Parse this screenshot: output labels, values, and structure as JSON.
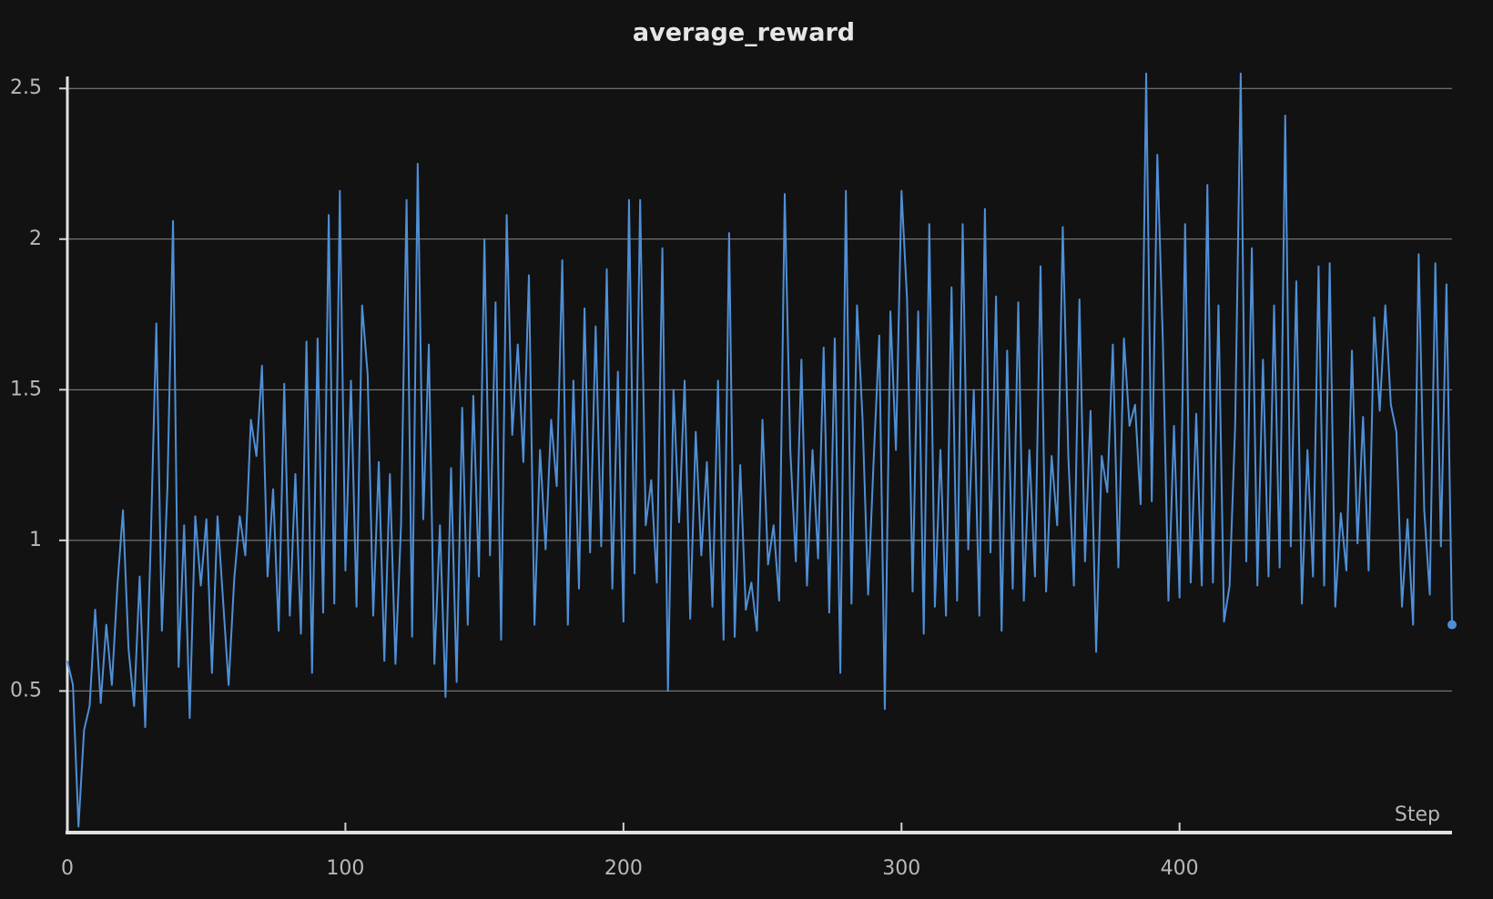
{
  "chart_data": {
    "type": "line",
    "title": "average_reward",
    "x_label": "Step",
    "color": "#4f8fd6",
    "grid": true,
    "xlim": [
      0,
      498
    ],
    "xticks": [
      0,
      100,
      200,
      300,
      400
    ],
    "ylim": [
      0.03,
      2.54
    ],
    "yticks": [
      0.5,
      1,
      1.5,
      2,
      2.5
    ],
    "x": [
      0,
      2,
      4,
      6,
      8,
      10,
      12,
      14,
      16,
      18,
      20,
      22,
      24,
      26,
      28,
      30,
      32,
      34,
      36,
      38,
      40,
      42,
      44,
      46,
      48,
      50,
      52,
      54,
      56,
      58,
      60,
      62,
      64,
      66,
      68,
      70,
      72,
      74,
      76,
      78,
      80,
      82,
      84,
      86,
      88,
      90,
      92,
      94,
      96,
      98,
      100,
      102,
      104,
      106,
      108,
      110,
      112,
      114,
      116,
      118,
      120,
      122,
      124,
      126,
      128,
      130,
      132,
      134,
      136,
      138,
      140,
      142,
      144,
      146,
      148,
      150,
      152,
      154,
      156,
      158,
      160,
      162,
      164,
      166,
      168,
      170,
      172,
      174,
      176,
      178,
      180,
      182,
      184,
      186,
      188,
      190,
      192,
      194,
      196,
      198,
      200,
      202,
      204,
      206,
      208,
      210,
      212,
      214,
      216,
      218,
      220,
      222,
      224,
      226,
      228,
      230,
      232,
      234,
      236,
      238,
      240,
      242,
      244,
      246,
      248,
      250,
      252,
      254,
      256,
      258,
      260,
      262,
      264,
      266,
      268,
      270,
      272,
      274,
      276,
      278,
      280,
      282,
      284,
      286,
      288,
      290,
      292,
      294,
      296,
      298,
      300,
      302,
      304,
      306,
      308,
      310,
      312,
      314,
      316,
      318,
      320,
      322,
      324,
      326,
      328,
      330,
      332,
      334,
      336,
      338,
      340,
      342,
      344,
      346,
      348,
      350,
      352,
      354,
      356,
      358,
      360,
      362,
      364,
      366,
      368,
      370,
      372,
      374,
      376,
      378,
      380,
      382,
      384,
      386,
      388,
      390,
      392,
      394,
      396,
      398,
      400,
      402,
      404,
      406,
      408,
      410,
      412,
      414,
      416,
      418,
      420,
      422,
      424,
      426,
      428,
      430,
      432,
      434,
      436,
      438,
      440,
      442,
      444,
      446,
      448,
      450,
      452,
      454,
      456,
      458,
      460,
      462,
      464,
      466,
      468,
      470,
      472,
      474,
      476,
      478,
      480,
      482,
      484,
      486,
      488,
      490,
      492,
      494,
      496,
      498
    ],
    "values": [
      0.6,
      0.52,
      0.05,
      0.37,
      0.45,
      0.77,
      0.46,
      0.72,
      0.52,
      0.85,
      1.1,
      0.64,
      0.45,
      0.88,
      0.38,
      1.0,
      1.72,
      0.7,
      1.18,
      2.06,
      0.58,
      1.05,
      0.41,
      1.08,
      0.85,
      1.07,
      0.56,
      1.08,
      0.8,
      0.52,
      0.87,
      1.08,
      0.95,
      1.4,
      1.28,
      1.58,
      0.88,
      1.17,
      0.7,
      1.52,
      0.75,
      1.22,
      0.69,
      1.66,
      0.56,
      1.67,
      0.76,
      2.08,
      0.79,
      2.16,
      0.9,
      1.53,
      0.78,
      1.78,
      1.55,
      0.75,
      1.26,
      0.6,
      1.22,
      0.59,
      1.05,
      2.13,
      0.68,
      2.25,
      1.07,
      1.65,
      0.59,
      1.05,
      0.48,
      1.24,
      0.53,
      1.44,
      0.72,
      1.48,
      0.88,
      2.0,
      0.95,
      1.79,
      0.67,
      2.08,
      1.35,
      1.65,
      1.26,
      1.88,
      0.72,
      1.3,
      0.97,
      1.4,
      1.18,
      1.93,
      0.72,
      1.53,
      0.84,
      1.77,
      0.96,
      1.71,
      0.98,
      1.9,
      0.84,
      1.56,
      0.73,
      2.13,
      0.89,
      2.13,
      1.05,
      1.2,
      0.86,
      1.97,
      0.5,
      1.5,
      1.06,
      1.53,
      0.74,
      1.36,
      0.95,
      1.26,
      0.78,
      1.53,
      0.67,
      2.02,
      0.68,
      1.25,
      0.77,
      0.86,
      0.7,
      1.4,
      0.92,
      1.05,
      0.8,
      2.15,
      1.3,
      0.93,
      1.6,
      0.85,
      1.3,
      0.94,
      1.64,
      0.76,
      1.67,
      0.56,
      2.16,
      0.79,
      1.78,
      1.4,
      0.82,
      1.27,
      1.68,
      0.44,
      1.76,
      1.3,
      2.16,
      1.8,
      0.83,
      1.76,
      0.69,
      2.05,
      0.78,
      1.3,
      0.75,
      1.84,
      0.8,
      2.05,
      0.97,
      1.5,
      0.75,
      2.1,
      0.96,
      1.81,
      0.7,
      1.63,
      0.84,
      1.79,
      0.8,
      1.3,
      0.88,
      1.91,
      0.83,
      1.28,
      1.05,
      2.04,
      1.28,
      0.85,
      1.8,
      0.93,
      1.43,
      0.63,
      1.28,
      1.16,
      1.65,
      0.91,
      1.67,
      1.38,
      1.45,
      1.12,
      2.55,
      1.13,
      2.28,
      1.66,
      0.8,
      1.38,
      0.81,
      2.05,
      0.86,
      1.42,
      0.85,
      2.18,
      0.86,
      1.78,
      0.73,
      0.85,
      1.38,
      2.55,
      0.93,
      1.97,
      0.85,
      1.6,
      0.88,
      1.78,
      0.91,
      2.41,
      0.98,
      1.86,
      0.79,
      1.3,
      0.88,
      1.91,
      0.85,
      1.92,
      0.78,
      1.09,
      0.9,
      1.63,
      0.99,
      1.41,
      0.9,
      1.74,
      1.43,
      1.78,
      1.45,
      1.36,
      0.78,
      1.07,
      0.72,
      1.95,
      1.1,
      0.82,
      1.92,
      0.98,
      1.85,
      0.72
    ]
  }
}
